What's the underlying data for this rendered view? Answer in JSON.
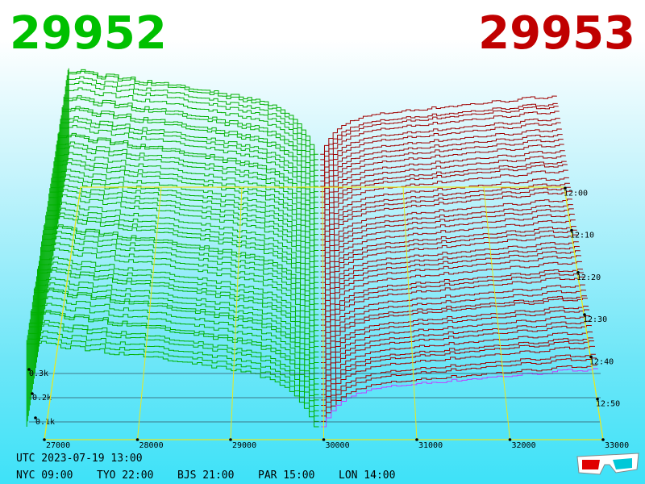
{
  "header": {
    "bid": "29952",
    "ask": "29953"
  },
  "price_axis": [
    "27000",
    "28000",
    "29000",
    "30000",
    "31000",
    "32000",
    "33000"
  ],
  "volume_axis": [
    "0.3k",
    "0.2k",
    "0.1k"
  ],
  "time_axis": [
    "12:00",
    "12:10",
    "12:20",
    "12:30",
    "12:40",
    "12:50"
  ],
  "footer": {
    "utc": "UTC 2023-07-19 13:00",
    "zones": [
      "NYC 09:00",
      "TYO 22:00",
      "BJS 21:00",
      "PAR 15:00",
      "LON 14:00"
    ]
  }
}
